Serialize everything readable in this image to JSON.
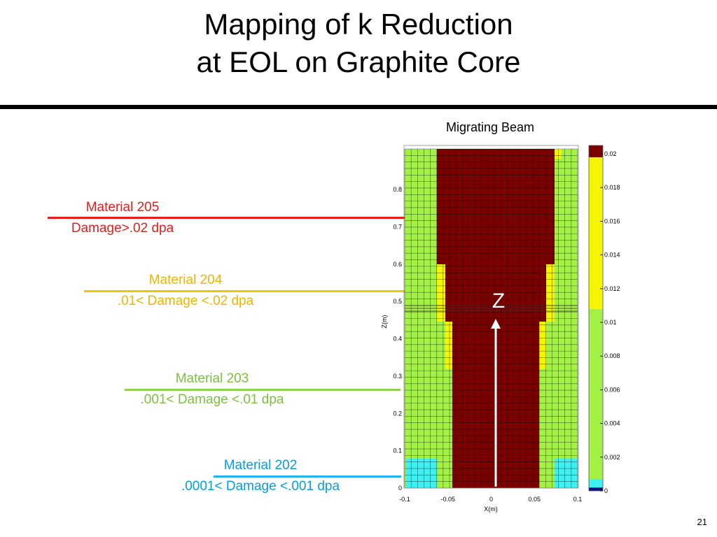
{
  "slide": {
    "title_line1": "Mapping of k Reduction",
    "title_line2": "at EOL on Graphite Core",
    "page_number": "21"
  },
  "beam_label": "Migrating Beam",
  "z_label": "Z",
  "materials": [
    {
      "name": "Material 205",
      "range": "Damage>.02 dpa",
      "color": "#e81c1c"
    },
    {
      "name": "Material 204",
      "range": ".01< Damage <.02 dpa",
      "color": "#f0b400"
    },
    {
      "name": "Material 203",
      "range": ".001< Damage <.01 dpa",
      "color": "#92d050"
    },
    {
      "name": "Material 202",
      "range": ".0001< Damage <.001 dpa",
      "color": "#00b0f0"
    }
  ],
  "plot": {
    "xlabel": "X(m)",
    "ylabel": "Z(m)",
    "x_ticks": [
      "-0.1",
      "-0.05",
      "0",
      "0.05",
      "0.1"
    ],
    "y_ticks": [
      "0",
      "0.1",
      "0.2",
      "0.3",
      "0.4",
      "0.5",
      "0.6",
      "0.7",
      "0.8"
    ],
    "xlim": [
      -0.1,
      0.1
    ],
    "ylim": [
      0,
      0.85
    ],
    "cell_colors": {
      "green": "#a3f046",
      "yellow": "#f5f500",
      "darkred": "#7b0000",
      "cyan": "#3ef0f0",
      "grid": "#000000"
    }
  },
  "colorbar": {
    "ticks": [
      "0.02",
      "0.018",
      "0.016",
      "0.014",
      "0.012",
      "0.01",
      "0.008",
      "0.006",
      "0.004",
      "0.002",
      "0"
    ],
    "segments": [
      {
        "from": 0.0,
        "to": 0.0002,
        "color": "#10107a"
      },
      {
        "from": 0.0002,
        "to": 0.0007,
        "color": "#3ef0f0"
      },
      {
        "from": 0.0007,
        "to": 0.0108,
        "color": "#a3f046"
      },
      {
        "from": 0.0108,
        "to": 0.0198,
        "color": "#f5f500"
      },
      {
        "from": 0.0198,
        "to": 0.0205,
        "color": "#7b0000"
      }
    ],
    "range": [
      0,
      0.0205
    ]
  }
}
